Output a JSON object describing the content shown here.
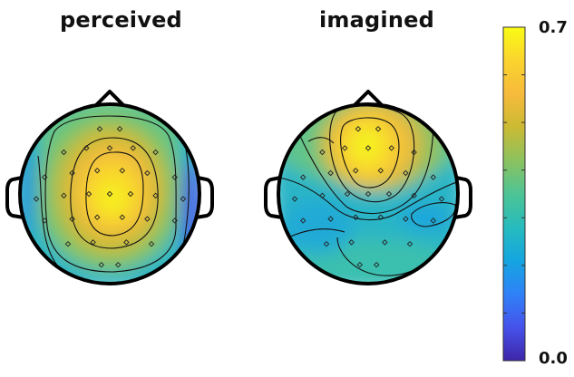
{
  "chart_data": [
    {
      "type": "heatmap",
      "title": "perceived",
      "sensor_count": 32,
      "peak_region": "central",
      "peak_value": 0.7,
      "min_region": "right-temporal",
      "min_value": 0.05
    },
    {
      "type": "heatmap",
      "title": "imagined",
      "sensor_count": 32,
      "peak_region": "frontal",
      "peak_value": 0.7,
      "min_region": "left/right-parietal",
      "min_value": 0.25
    }
  ],
  "colorbar": {
    "min_label": "0.0",
    "max_label": "0.7",
    "vmin": 0.0,
    "vmax": 0.7,
    "colormap": [
      "#3e26a8",
      "#4652eb",
      "#2f82f7",
      "#14a5e0",
      "#27bbbd",
      "#4dc495",
      "#8cc25f",
      "#caba33",
      "#f7ba3c",
      "#fad42d",
      "#f9fb15"
    ]
  }
}
